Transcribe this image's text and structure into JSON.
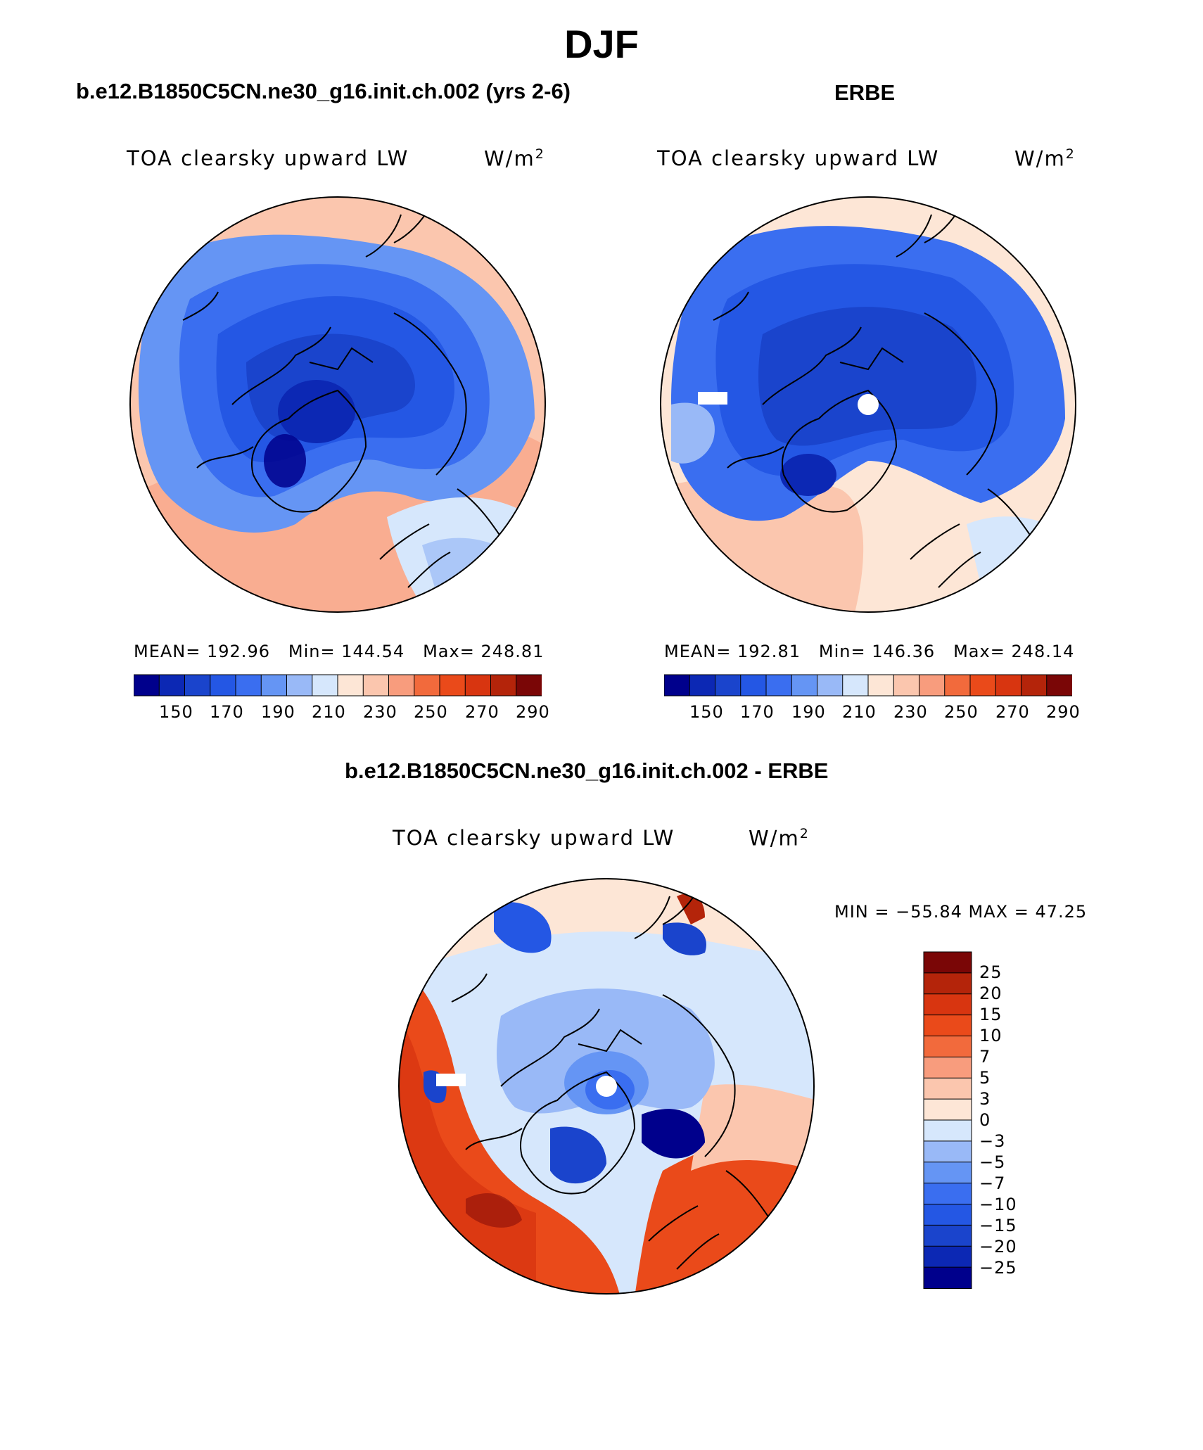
{
  "figure": {
    "season": "DJF",
    "colors": {
      "scale_16": [
        "#00008c",
        "#0c28b4",
        "#1a44cc",
        "#2457e4",
        "#3a6ef0",
        "#6595f4",
        "#99b9f7",
        "#d6e7fc",
        "#fde6d6",
        "#fbc6ae",
        "#f89c7d",
        "#f26a3c",
        "#ea4a1a",
        "#d83510",
        "#b4240a",
        "#7a0606"
      ],
      "diff_scale": [
        "#00008c",
        "#0c28b4",
        "#1a44cc",
        "#2457e4",
        "#3a6ef0",
        "#6595f4",
        "#99b9f7",
        "#d6e7fc",
        "#fde6d6",
        "#fbc6ae",
        "#f89c7d",
        "#f26a3c",
        "#ea4a1a",
        "#d83510",
        "#b4240a",
        "#7a0606"
      ]
    }
  },
  "panels": [
    {
      "title": "b.e12.B1850C5CN.ne30_g16.init.ch.002 (yrs 2-6)",
      "field_label": "TOA clearsky upward LW",
      "units_base": "W/m",
      "units_exp": "2",
      "stats": {
        "mean_label": "MEAN=",
        "mean": "192.96",
        "min_label": "Min=",
        "min": "144.54",
        "max_label": "Max=",
        "max": "248.81"
      },
      "colorbar_ticks": [
        "150",
        "170",
        "190",
        "210",
        "230",
        "250",
        "270",
        "290"
      ]
    },
    {
      "title": "ERBE",
      "field_label": "TOA clearsky upward LW",
      "units_base": "W/m",
      "units_exp": "2",
      "stats": {
        "mean_label": "MEAN=",
        "mean": "192.81",
        "min_label": "Min=",
        "min": "146.36",
        "max_label": "Max=",
        "max": "248.14"
      },
      "colorbar_ticks": [
        "150",
        "170",
        "190",
        "210",
        "230",
        "250",
        "270",
        "290"
      ]
    },
    {
      "title": "b.e12.B1850C5CN.ne30_g16.init.ch.002 - ERBE",
      "field_label": "TOA clearsky upward LW",
      "units_base": "W/m",
      "units_exp": "2",
      "minmax": "MIN = −55.84 MAX =  47.25",
      "colorbar_ticks": [
        "25",
        "20",
        "15",
        "10",
        "7",
        "5",
        "3",
        "0",
        "−3",
        "−5",
        "−7",
        "−10",
        "−15",
        "−20",
        "−25"
      ]
    }
  ]
}
